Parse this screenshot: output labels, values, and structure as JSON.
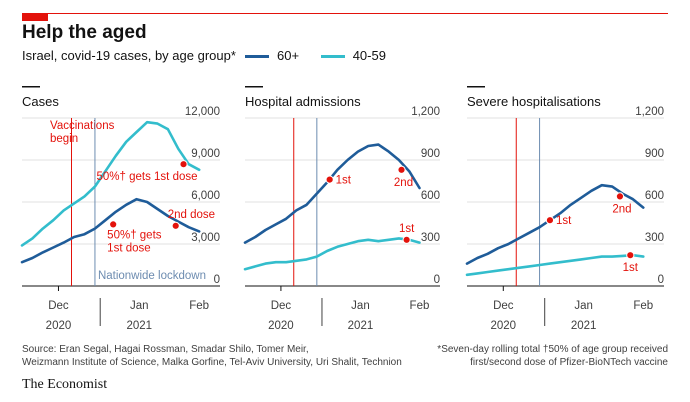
{
  "header": {
    "title": "Help the aged",
    "subtitle": "Israel, covid-19 cases, by age group*",
    "legend": [
      {
        "label": "60+",
        "color": "#1f5c99"
      },
      {
        "label": "40-59",
        "color": "#33bdcc"
      }
    ]
  },
  "colors": {
    "series_60plus": "#1f5c99",
    "series_40_59": "#33bdcc",
    "vaccination_line": "#e3120b",
    "lockdown_line": "#6d8cb0",
    "annotation": "#e3120b",
    "brand_red": "#e3120b"
  },
  "chart_data": [
    {
      "type": "line",
      "title": "Cases",
      "x_ticks": [
        "Dec",
        "Jan",
        "Feb"
      ],
      "x_years": [
        "2020",
        "2021"
      ],
      "ylim": [
        0,
        12000
      ],
      "y_ticks": [
        "12,000",
        "9,000",
        "6,000",
        "3,000",
        "0"
      ],
      "y_tick_values": [
        12000,
        9000,
        6000,
        3000,
        0
      ],
      "x_range_days": [
        0,
        76
      ],
      "events": [
        {
          "label_lines": [
            "Vaccinations",
            "begin"
          ],
          "day": 19,
          "style": "vaccination"
        },
        {
          "label_lines": [
            "Nationwide lockdown"
          ],
          "day": 28,
          "style": "lockdown"
        }
      ],
      "series": [
        {
          "name": "60+",
          "x": [
            0,
            4,
            8,
            12,
            16,
            20,
            24,
            28,
            32,
            36,
            40,
            44,
            48,
            52,
            56,
            60,
            64,
            68
          ],
          "y": [
            1700,
            2000,
            2400,
            2750,
            3100,
            3500,
            3700,
            4100,
            4700,
            5300,
            5800,
            6200,
            6000,
            5500,
            5000,
            4600,
            4200,
            3900
          ]
        },
        {
          "name": "40-59",
          "x": [
            0,
            4,
            8,
            12,
            16,
            20,
            24,
            28,
            32,
            36,
            40,
            44,
            48,
            52,
            56,
            60,
            64,
            68
          ],
          "y": [
            2900,
            3400,
            4100,
            4700,
            5400,
            5900,
            6400,
            7100,
            8200,
            9300,
            10300,
            11000,
            11700,
            11600,
            11200,
            9800,
            8700,
            8300
          ]
        }
      ],
      "annotations": [
        {
          "label_lines": [
            "50%† gets 1st dose"
          ],
          "series": "40-59",
          "x": 62,
          "y": 8700
        },
        {
          "label_lines": [
            "2nd dose"
          ],
          "series": "60+",
          "x": 59,
          "y": 4300
        },
        {
          "label_lines": [
            "50%† gets",
            "1st dose"
          ],
          "series": "60+",
          "x": 35,
          "y": 4400
        }
      ]
    },
    {
      "type": "line",
      "title": "Hospital admissions",
      "x_ticks": [
        "Dec",
        "Jan",
        "Feb"
      ],
      "x_years": [
        "2020",
        "2021"
      ],
      "ylim": [
        0,
        1200
      ],
      "y_ticks": [
        "1,200",
        "900",
        "600",
        "300",
        "0"
      ],
      "y_tick_values": [
        1200,
        900,
        600,
        300,
        0
      ],
      "x_range_days": [
        0,
        76
      ],
      "events": [
        {
          "label_lines": [],
          "day": 19,
          "style": "vaccination"
        },
        {
          "label_lines": [],
          "day": 28,
          "style": "lockdown"
        }
      ],
      "series": [
        {
          "name": "60+",
          "x": [
            0,
            4,
            8,
            12,
            16,
            20,
            24,
            28,
            32,
            36,
            40,
            44,
            48,
            52,
            56,
            60,
            64,
            68
          ],
          "y": [
            310,
            350,
            400,
            440,
            480,
            540,
            580,
            660,
            740,
            830,
            900,
            960,
            1000,
            1010,
            960,
            900,
            820,
            700
          ]
        },
        {
          "name": "40-59",
          "x": [
            0,
            4,
            8,
            12,
            16,
            20,
            24,
            28,
            32,
            36,
            40,
            44,
            48,
            52,
            56,
            60,
            64,
            68
          ],
          "y": [
            120,
            140,
            160,
            170,
            170,
            180,
            190,
            210,
            250,
            280,
            300,
            320,
            330,
            320,
            330,
            340,
            330,
            310
          ]
        }
      ],
      "annotations": [
        {
          "label_lines": [
            "1st"
          ],
          "series": "60+",
          "x": 33,
          "y": 760
        },
        {
          "label_lines": [
            "2nd"
          ],
          "series": "60+",
          "x": 61,
          "y": 830
        },
        {
          "label_lines": [
            "1st"
          ],
          "series": "40-59",
          "x": 63,
          "y": 330
        }
      ]
    },
    {
      "type": "line",
      "title": "Severe hospitalisations",
      "x_ticks": [
        "Dec",
        "Jan",
        "Feb"
      ],
      "x_years": [
        "2020",
        "2021"
      ],
      "ylim": [
        0,
        1200
      ],
      "y_ticks": [
        "1,200",
        "900",
        "600",
        "300",
        "0"
      ],
      "y_tick_values": [
        1200,
        900,
        600,
        300,
        0
      ],
      "x_range_days": [
        0,
        76
      ],
      "events": [
        {
          "label_lines": [],
          "day": 19,
          "style": "vaccination"
        },
        {
          "label_lines": [],
          "day": 28,
          "style": "lockdown"
        }
      ],
      "series": [
        {
          "name": "60+",
          "x": [
            0,
            4,
            8,
            12,
            16,
            20,
            24,
            28,
            32,
            36,
            40,
            44,
            48,
            52,
            56,
            60,
            64,
            68
          ],
          "y": [
            160,
            200,
            230,
            270,
            300,
            340,
            380,
            420,
            470,
            520,
            580,
            630,
            680,
            720,
            710,
            660,
            620,
            560
          ]
        },
        {
          "name": "40-59",
          "x": [
            0,
            4,
            8,
            12,
            16,
            20,
            24,
            28,
            32,
            36,
            40,
            44,
            48,
            52,
            56,
            60,
            64,
            68
          ],
          "y": [
            80,
            90,
            100,
            110,
            120,
            130,
            140,
            150,
            160,
            170,
            180,
            190,
            200,
            210,
            210,
            215,
            220,
            210
          ]
        }
      ],
      "annotations": [
        {
          "label_lines": [
            "1st"
          ],
          "series": "60+",
          "x": 32,
          "y": 470
        },
        {
          "label_lines": [
            "2nd"
          ],
          "series": "60+",
          "x": 59,
          "y": 640
        },
        {
          "label_lines": [
            "1st"
          ],
          "series": "40-59",
          "x": 63,
          "y": 220
        }
      ]
    }
  ],
  "footer": {
    "source_lines": [
      "Source: Eran Segal, Hagai Rossman, Smadar Shilo, Tomer Meir,",
      "Weizmann Institute of Science, Malka Gorfine, Tel-Aviv University, Uri Shalit, Technion"
    ],
    "footnote_lines": [
      "*Seven-day rolling total   †50% of age group received",
      "first/second dose of Pfizer-BioNTech vaccine"
    ],
    "brand": "The Economist"
  }
}
